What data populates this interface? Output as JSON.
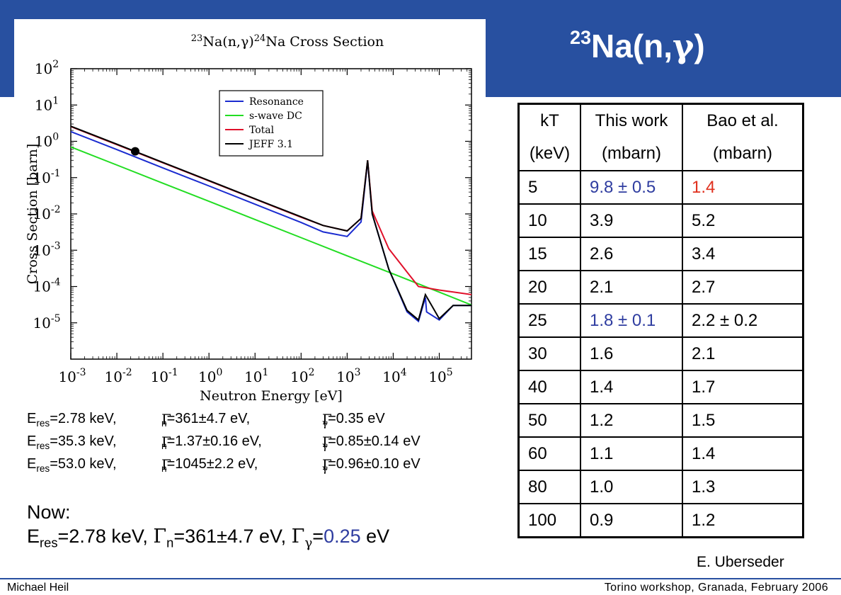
{
  "header": {
    "title_prefix": "23",
    "title_main": "Na(n,",
    "title_gamma": "γ",
    "title_suffix": ")"
  },
  "chart_data": {
    "type": "line",
    "title": "23Na(n,γ)24Na Cross Section",
    "title_parts": {
      "m1": "23",
      "a": "Na(n,",
      "g": "γ",
      "b": ")",
      "m2": "24",
      "c": "Na Cross Section"
    },
    "xlabel": "Neutron Energy [eV]",
    "ylabel": "Cross Section [barn]",
    "x_scale": "log",
    "y_scale": "log",
    "xlim": [
      0.001,
      500000
    ],
    "ylim": [
      1e-06,
      100
    ],
    "x_ticks": [
      "10-3",
      "10-2",
      "10-1",
      "100",
      "101",
      "102",
      "103",
      "104",
      "105"
    ],
    "y_ticks": [
      "10-5",
      "10-4",
      "10-3",
      "10-2",
      "10-1",
      "100",
      "101",
      "102"
    ],
    "legend_position": "top-right",
    "series": [
      {
        "name": "Resonance",
        "color": "#1a2bd0",
        "points": [
          [
            0.001,
            1.85
          ],
          [
            0.01,
            0.59
          ],
          [
            0.1,
            0.185
          ],
          [
            1,
            0.059
          ],
          [
            10,
            0.0185
          ],
          [
            100,
            0.0058
          ],
          [
            300,
            0.0032
          ],
          [
            1000,
            0.0024
          ],
          [
            2000,
            0.006
          ],
          [
            2780,
            0.28
          ],
          [
            3500,
            0.01
          ],
          [
            8000,
            0.0003
          ],
          [
            20000,
            2e-05
          ],
          [
            35300,
            1.1e-05
          ],
          [
            50000,
            5e-05
          ],
          [
            53000,
            2e-05
          ],
          [
            100000,
            1.2e-05
          ],
          [
            200000,
            3e-05
          ],
          [
            500000,
            3e-05
          ]
        ]
      },
      {
        "name": "s-wave DC",
        "color": "#22dd22",
        "points": [
          [
            0.001,
            0.7
          ],
          [
            0.01,
            0.222
          ],
          [
            0.1,
            0.07
          ],
          [
            1,
            0.0222
          ],
          [
            10,
            0.007
          ],
          [
            100,
            0.00222
          ],
          [
            1000,
            0.0007
          ],
          [
            10000,
            0.000222
          ],
          [
            100000,
            7e-05
          ],
          [
            500000,
            3.1e-05
          ]
        ]
      },
      {
        "name": "Total",
        "color": "#e0102a",
        "points": [
          [
            0.001,
            2.55
          ],
          [
            0.01,
            0.81
          ],
          [
            0.1,
            0.256
          ],
          [
            1,
            0.081
          ],
          [
            10,
            0.0256
          ],
          [
            100,
            0.0081
          ],
          [
            300,
            0.0048
          ],
          [
            1000,
            0.0034
          ],
          [
            2000,
            0.0075
          ],
          [
            2780,
            0.3
          ],
          [
            3500,
            0.012
          ],
          [
            8000,
            0.0011
          ],
          [
            20000,
            0.00025
          ],
          [
            35300,
            0.0001
          ],
          [
            100000,
            8e-05
          ],
          [
            500000,
            6e-05
          ]
        ]
      },
      {
        "name": "JEFF 3.1",
        "color": "#000000",
        "points": [
          [
            0.001,
            2.6
          ],
          [
            0.01,
            0.83
          ],
          [
            0.1,
            0.262
          ],
          [
            1,
            0.083
          ],
          [
            10,
            0.026
          ],
          [
            100,
            0.0083
          ],
          [
            300,
            0.0048
          ],
          [
            1000,
            0.0034
          ],
          [
            2000,
            0.0075
          ],
          [
            2780,
            0.3
          ],
          [
            3500,
            0.01
          ],
          [
            8000,
            0.0003
          ],
          [
            20000,
            2.2e-05
          ],
          [
            35300,
            1.2e-05
          ],
          [
            50000,
            6e-05
          ],
          [
            100000,
            1.3e-05
          ],
          [
            200000,
            3e-05
          ],
          [
            500000,
            3e-05
          ]
        ]
      }
    ],
    "marked_point": {
      "x": 0.025,
      "y": 0.53
    }
  },
  "equations": [
    {
      "e_sub": "res",
      "e_val": "=2.78 keV,",
      "g_sub": "n",
      "g_val": "=361±4.7 eV,",
      "gg_val": "=0.35 eV"
    },
    {
      "e_sub": "res",
      "e_val": "=35.3 keV,",
      "g_sub": "n",
      "g_val": "=1.37±0.16 eV,",
      "gg_val": "=0.85±0.14 eV"
    },
    {
      "e_sub": "res",
      "e_val": "=53.0 keV,",
      "g_sub": "n",
      "g_val": "=1045±2.2 eV,",
      "gg_val": "=0.96±0.10 eV"
    }
  ],
  "now": {
    "label": "Now:",
    "e_sub": "res",
    "e_val": "=2.78 keV, ",
    "g_sub": "n",
    "g_val": "=361±4.7 eV, ",
    "gg_eq": "=",
    "gg_val": "0.25",
    "gg_unit": " eV"
  },
  "table": {
    "headers": [
      [
        "kT",
        "(keV)"
      ],
      [
        "This work",
        "(mbarn)"
      ],
      [
        "Bao et al.",
        "(mbarn)"
      ]
    ],
    "rows": [
      [
        "5",
        "9.8 ± 0.5",
        "1.4"
      ],
      [
        "10",
        "3.9",
        "5.2"
      ],
      [
        "15",
        "2.6",
        "3.4"
      ],
      [
        "20",
        "2.1",
        "2.7"
      ],
      [
        "25",
        "1.8 ± 0.1",
        "2.2  ± 0.2"
      ],
      [
        "30",
        "1.6",
        "2.1"
      ],
      [
        "40",
        "1.4",
        "1.7"
      ],
      [
        "50",
        "1.2",
        "1.5"
      ],
      [
        "60",
        "1.1",
        "1.4"
      ],
      [
        "80",
        "1.0",
        "1.3"
      ],
      [
        "100",
        "0.9",
        "1.2"
      ]
    ],
    "highlight_blue_color": "#2f3da0",
    "highlight_red_color": "#e0301e"
  },
  "author": "E. Uberseder",
  "footer": {
    "left": "Michael Heil",
    "right": "Torino workshop, Granada,  February 2006"
  },
  "colors": {
    "header_bg": "#2850a0"
  }
}
